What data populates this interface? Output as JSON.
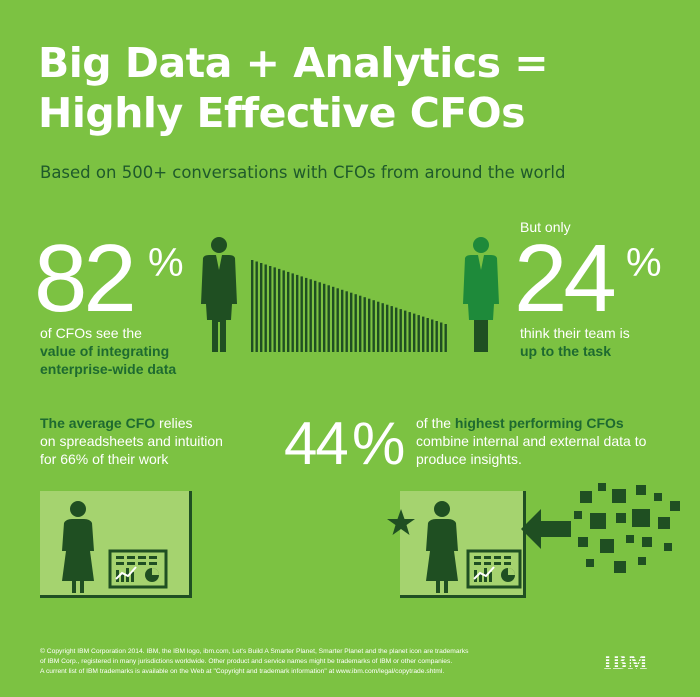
{
  "title": {
    "line1": "Big Data + Analytics =",
    "line2": "Highly Effective CFOs"
  },
  "subtitle": "Based on 500+ conversations with CFOs from around the world",
  "stat_left": {
    "number": "82",
    "percent": "%",
    "line1": "of CFOs see the",
    "line2": "value of integrating",
    "line3": "enterprise-wide data"
  },
  "stat_right": {
    "intro": "But only",
    "number": "24",
    "percent": "%",
    "line1": "think their team is",
    "line2": "up to the task"
  },
  "average_cfo": {
    "emphasis": "The average CFO",
    "line1_rest": " relies",
    "line2": "on spreadsheets and intuition",
    "line3": "for 66% of their work"
  },
  "stat_44": {
    "number": "44",
    "percent": "%",
    "line1_pre": "of the ",
    "line1_em": "highest performing CFOs",
    "line2": "combine internal and external data to",
    "line3": "produce insights."
  },
  "footer": {
    "line1": "© Copyright IBM Corporation 2014. IBM, the IBM logo, ibm.com, Let's Build A Smarter Planet, Smarter Planet and the planet icon are trademarks",
    "line2": "of IBM Corp., registered in many jurisdictions worldwide. Other product and service names might be trademarks of IBM or other companies.",
    "line3": "A current list of IBM trademarks is available on the Web at \"Copyright and trademark information\" at www.ibm.com/legal/copytrade.shtml."
  },
  "logo": {
    "text": "IBM"
  },
  "icons": [
    "person-dark-icon",
    "person-green-icon",
    "bar-slope-graphic",
    "chart-board-icon",
    "star-icon",
    "arrow-left-icon",
    "data-squares-graphic"
  ],
  "colors": {
    "background": "#7cc242",
    "dark_green": "#1f4f22",
    "mid_green": "#1e6a30",
    "light_panel": "#a5d36f",
    "white": "#ffffff"
  }
}
